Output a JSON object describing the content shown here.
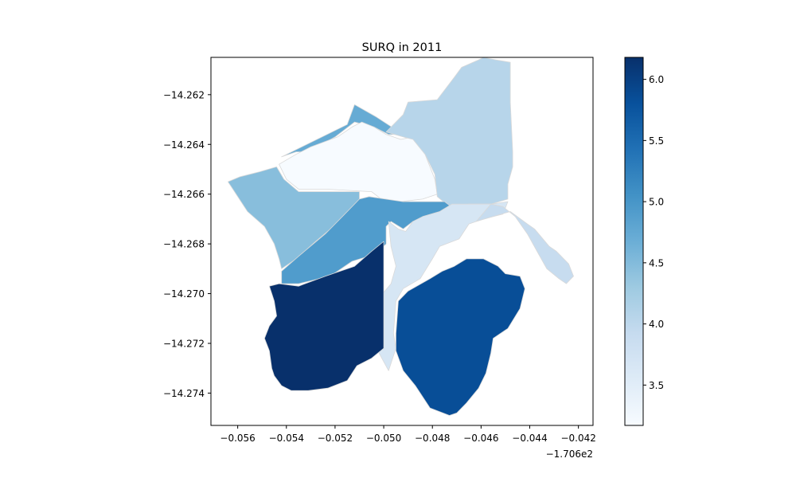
{
  "chart_data": {
    "type": "choropleth",
    "title": "SURQ in 2011",
    "xlabel": "",
    "ylabel": "",
    "x_offset_label": "−1.706e2",
    "x_ticks": [
      "−0.056",
      "−0.054",
      "−0.052",
      "−0.050",
      "−0.048",
      "−0.046",
      "−0.044",
      "−0.042"
    ],
    "x_tick_values": [
      -0.056,
      -0.054,
      -0.052,
      -0.05,
      -0.048,
      -0.046,
      -0.044,
      -0.042
    ],
    "y_ticks": [
      "−14.262",
      "−14.264",
      "−14.266",
      "−14.268",
      "−14.270",
      "−14.272",
      "−14.274"
    ],
    "y_tick_values": [
      -14.262,
      -14.264,
      -14.266,
      -14.268,
      -14.27,
      -14.272,
      -14.274
    ],
    "xlim": [
      -0.0571,
      -0.0414
    ],
    "ylim": [
      -14.2753,
      -14.2605
    ],
    "colormap": "Blues",
    "colorbar": {
      "range": [
        3.17,
        6.18
      ],
      "ticks": [
        "3.5",
        "4.0",
        "4.5",
        "5.0",
        "5.5",
        "6.0"
      ],
      "tick_values": [
        3.5,
        4.0,
        4.5,
        5.0,
        5.5,
        6.0
      ]
    },
    "regions": [
      {
        "value": 4.72,
        "polygon": [
          [
            -0.0542,
            -14.2645
          ],
          [
            -0.0515,
            -14.2632
          ],
          [
            -0.0512,
            -14.2624
          ],
          [
            -0.0503,
            -14.2629
          ],
          [
            -0.0492,
            -14.2636
          ],
          [
            -0.0498,
            -14.2636
          ],
          [
            -0.0504,
            -14.2633
          ],
          [
            -0.0512,
            -14.2631
          ],
          [
            -0.052,
            -14.2637
          ],
          [
            -0.0531,
            -14.2643
          ],
          [
            -0.0536,
            -14.2643
          ]
        ]
      },
      {
        "value": 3.17,
        "polygon": [
          [
            -0.0536,
            -14.2644
          ],
          [
            -0.053,
            -14.2641
          ],
          [
            -0.0519,
            -14.2637
          ],
          [
            -0.0513,
            -14.2633
          ],
          [
            -0.0509,
            -14.2631
          ],
          [
            -0.0504,
            -14.2633
          ],
          [
            -0.0499,
            -14.2636
          ],
          [
            -0.0493,
            -14.2638
          ],
          [
            -0.0488,
            -14.2637
          ],
          [
            -0.0483,
            -14.2644
          ],
          [
            -0.0479,
            -14.2654
          ],
          [
            -0.0478,
            -14.266
          ],
          [
            -0.0484,
            -14.2662
          ],
          [
            -0.0493,
            -14.2663
          ],
          [
            -0.0501,
            -14.2662
          ],
          [
            -0.0505,
            -14.2659
          ],
          [
            -0.0524,
            -14.2658
          ],
          [
            -0.0535,
            -14.2658
          ],
          [
            -0.054,
            -14.2654
          ],
          [
            -0.0543,
            -14.2648
          ]
        ]
      },
      {
        "value": 4.06,
        "polygon": [
          [
            -0.0499,
            -14.2635
          ],
          [
            -0.0492,
            -14.2628
          ],
          [
            -0.049,
            -14.2623
          ],
          [
            -0.0478,
            -14.2622
          ],
          [
            -0.0471,
            -14.2613
          ],
          [
            -0.0468,
            -14.2609
          ],
          [
            -0.0461,
            -14.2606
          ],
          [
            -0.0459,
            -14.2605
          ],
          [
            -0.0454,
            -14.2606
          ],
          [
            -0.0448,
            -14.2607
          ],
          [
            -0.0448,
            -14.2623
          ],
          [
            -0.0447,
            -14.2643
          ],
          [
            -0.0447,
            -14.2649
          ],
          [
            -0.0449,
            -14.2656
          ],
          [
            -0.0449,
            -14.2662
          ],
          [
            -0.0456,
            -14.2664
          ],
          [
            -0.0465,
            -14.2664
          ],
          [
            -0.0473,
            -14.2665
          ],
          [
            -0.0478,
            -14.2661
          ],
          [
            -0.0479,
            -14.2652
          ],
          [
            -0.0483,
            -14.2644
          ],
          [
            -0.0488,
            -14.2638
          ],
          [
            -0.0492,
            -14.2637
          ]
        ]
      },
      {
        "value": 4.46,
        "polygon": [
          [
            -0.0564,
            -14.2655
          ],
          [
            -0.0562,
            -14.2658
          ],
          [
            -0.0556,
            -14.2667
          ],
          [
            -0.0549,
            -14.2673
          ],
          [
            -0.0545,
            -14.268
          ],
          [
            -0.0543,
            -14.2686
          ],
          [
            -0.0542,
            -14.269
          ],
          [
            -0.0536,
            -14.2686
          ],
          [
            -0.0528,
            -14.2679
          ],
          [
            -0.0517,
            -14.267
          ],
          [
            -0.051,
            -14.2662
          ],
          [
            -0.051,
            -14.2659
          ],
          [
            -0.0524,
            -14.2659
          ],
          [
            -0.0535,
            -14.2659
          ],
          [
            -0.0541,
            -14.2654
          ],
          [
            -0.0544,
            -14.2649
          ],
          [
            -0.0551,
            -14.2651
          ],
          [
            -0.0559,
            -14.2653
          ]
        ]
      },
      {
        "value": 4.92,
        "polygon": [
          [
            -0.0542,
            -14.2691
          ],
          [
            -0.0535,
            -14.2685
          ],
          [
            -0.0524,
            -14.2676
          ],
          [
            -0.0516,
            -14.2668
          ],
          [
            -0.051,
            -14.2662
          ],
          [
            -0.0506,
            -14.2661
          ],
          [
            -0.0492,
            -14.2663
          ],
          [
            -0.0484,
            -14.2663
          ],
          [
            -0.0475,
            -14.2663
          ],
          [
            -0.0471,
            -14.2666
          ],
          [
            -0.0474,
            -14.2669
          ],
          [
            -0.0483,
            -14.267
          ],
          [
            -0.0485,
            -14.2672
          ],
          [
            -0.0488,
            -14.2671
          ],
          [
            -0.0492,
            -14.2674
          ],
          [
            -0.0497,
            -14.2671
          ],
          [
            -0.0499,
            -14.2673
          ],
          [
            -0.0499,
            -14.268
          ],
          [
            -0.0503,
            -14.2684
          ],
          [
            -0.0513,
            -14.2687
          ],
          [
            -0.0522,
            -14.2693
          ],
          [
            -0.0535,
            -14.2696
          ],
          [
            -0.0542,
            -14.2696
          ]
        ]
      },
      {
        "value": 3.67,
        "polygon": [
          [
            -0.0498,
            -14.2671
          ],
          [
            -0.0494,
            -14.2674
          ],
          [
            -0.0491,
            -14.2675
          ],
          [
            -0.0488,
            -14.2671
          ],
          [
            -0.0484,
            -14.2669
          ],
          [
            -0.0477,
            -14.2667
          ],
          [
            -0.0472,
            -14.2664
          ],
          [
            -0.0466,
            -14.2664
          ],
          [
            -0.0456,
            -14.2664
          ],
          [
            -0.0449,
            -14.2663
          ],
          [
            -0.0451,
            -14.2668
          ],
          [
            -0.0459,
            -14.267
          ],
          [
            -0.0465,
            -14.2672
          ],
          [
            -0.0469,
            -14.2678
          ],
          [
            -0.0477,
            -14.2681
          ],
          [
            -0.048,
            -14.2686
          ],
          [
            -0.0485,
            -14.2694
          ],
          [
            -0.0492,
            -14.2698
          ],
          [
            -0.0495,
            -14.2703
          ],
          [
            -0.0496,
            -14.2716
          ],
          [
            -0.0495,
            -14.2722
          ],
          [
            -0.0498,
            -14.2731
          ],
          [
            -0.0503,
            -14.2722
          ],
          [
            -0.0503,
            -14.2703
          ],
          [
            -0.0497,
            -14.2696
          ],
          [
            -0.0495,
            -14.2689
          ],
          [
            -0.0497,
            -14.2681
          ]
        ]
      },
      {
        "value": 3.9,
        "polygon": [
          [
            -0.0462,
            -14.2671
          ],
          [
            -0.0456,
            -14.2664
          ],
          [
            -0.0451,
            -14.2665
          ],
          [
            -0.0446,
            -14.2669
          ],
          [
            -0.0441,
            -14.2676
          ],
          [
            -0.0437,
            -14.2683
          ],
          [
            -0.0433,
            -14.269
          ],
          [
            -0.0428,
            -14.2694
          ],
          [
            -0.0425,
            -14.2696
          ],
          [
            -0.0422,
            -14.2693
          ],
          [
            -0.0424,
            -14.2688
          ],
          [
            -0.0429,
            -14.2683
          ],
          [
            -0.0432,
            -14.2681
          ],
          [
            -0.0438,
            -14.2674
          ],
          [
            -0.0441,
            -14.2672
          ],
          [
            -0.0448,
            -14.2667
          ]
        ]
      },
      {
        "value": 6.18,
        "polygon": [
          [
            -0.0547,
            -14.2697
          ],
          [
            -0.0543,
            -14.2696
          ],
          [
            -0.0535,
            -14.2697
          ],
          [
            -0.0524,
            -14.2693
          ],
          [
            -0.0512,
            -14.2689
          ],
          [
            -0.0505,
            -14.2683
          ],
          [
            -0.05,
            -14.2679
          ],
          [
            -0.05,
            -14.2702
          ],
          [
            -0.05,
            -14.2722
          ],
          [
            -0.0505,
            -14.2726
          ],
          [
            -0.0511,
            -14.2729
          ],
          [
            -0.0515,
            -14.2735
          ],
          [
            -0.0523,
            -14.2738
          ],
          [
            -0.0531,
            -14.2739
          ],
          [
            -0.0538,
            -14.2739
          ],
          [
            -0.0542,
            -14.2737
          ],
          [
            -0.0545,
            -14.2733
          ],
          [
            -0.0546,
            -14.273
          ],
          [
            -0.0547,
            -14.2723
          ],
          [
            -0.0549,
            -14.2718
          ],
          [
            -0.0547,
            -14.2713
          ],
          [
            -0.0544,
            -14.2709
          ],
          [
            -0.0545,
            -14.2703
          ]
        ]
      },
      {
        "value": 5.84,
        "polygon": [
          [
            -0.0495,
            -14.2723
          ],
          [
            -0.0495,
            -14.2716
          ],
          [
            -0.0494,
            -14.2703
          ],
          [
            -0.049,
            -14.2699
          ],
          [
            -0.0481,
            -14.2694
          ],
          [
            -0.0476,
            -14.2691
          ],
          [
            -0.0471,
            -14.2689
          ],
          [
            -0.0466,
            -14.2686
          ],
          [
            -0.0459,
            -14.2686
          ],
          [
            -0.0453,
            -14.2689
          ],
          [
            -0.045,
            -14.2692
          ],
          [
            -0.0444,
            -14.2693
          ],
          [
            -0.0442,
            -14.2698
          ],
          [
            -0.0444,
            -14.2706
          ],
          [
            -0.0449,
            -14.2714
          ],
          [
            -0.0455,
            -14.2718
          ],
          [
            -0.0456,
            -14.2724
          ],
          [
            -0.0458,
            -14.2732
          ],
          [
            -0.0461,
            -14.2738
          ],
          [
            -0.0466,
            -14.2744
          ],
          [
            -0.047,
            -14.2748
          ],
          [
            -0.0473,
            -14.2749
          ],
          [
            -0.0481,
            -14.2746
          ],
          [
            -0.0487,
            -14.2737
          ],
          [
            -0.0492,
            -14.2731
          ]
        ]
      }
    ]
  }
}
